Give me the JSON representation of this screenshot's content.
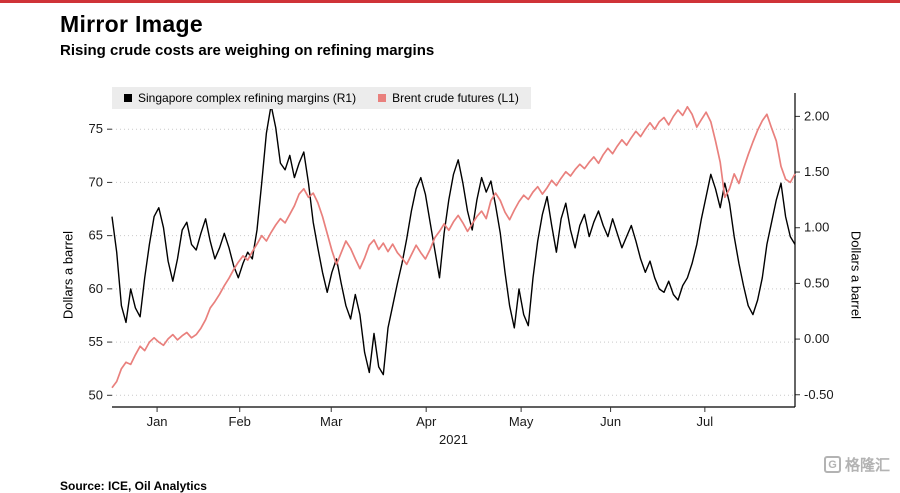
{
  "header": {
    "title": "Mirror Image",
    "subtitle": "Rising crude costs are weighing on refining margins"
  },
  "footer": {
    "source": "Source: ICE, Oil Analytics",
    "watermark": "格隆汇",
    "watermark_icon": "G"
  },
  "colors": {
    "accent_line": "#cf3338",
    "margins_series": "#000000",
    "brent_series": "#e9807d",
    "legend_bg": "#ececec",
    "gridline": "#c9c9c9"
  },
  "chart_data": {
    "type": "line",
    "title": "Mirror Image",
    "subtitle": "Rising crude costs are weighing on refining margins",
    "grid": "dotted-horizontal",
    "legend_position": "top-left",
    "x_axis": {
      "year_label": "2021",
      "month_labels": [
        "Jan",
        "Feb",
        "Mar",
        "Apr",
        "May",
        "Jun",
        "Jul"
      ],
      "month_positions": [
        0.066,
        0.187,
        0.321,
        0.46,
        0.599,
        0.73,
        0.868
      ]
    },
    "left_axis": {
      "label": "Dollars a barrel",
      "ticks": [
        50,
        55,
        60,
        65,
        70,
        75
      ],
      "range": [
        48.9,
        78.4
      ]
    },
    "right_axis": {
      "label": "Dollars a barrel",
      "ticks": [
        -0.5,
        0.0,
        0.5,
        1.0,
        1.5,
        2.0
      ],
      "range": [
        -0.61,
        2.21
      ]
    },
    "series": [
      {
        "name": "Singapore complex refining margins (R1)",
        "axis": "right",
        "color": "#000000",
        "values": [
          1.1,
          0.78,
          0.3,
          0.15,
          0.45,
          0.28,
          0.2,
          0.55,
          0.85,
          1.1,
          1.18,
          1.0,
          0.7,
          0.52,
          0.72,
          0.98,
          1.05,
          0.85,
          0.8,
          0.95,
          1.08,
          0.88,
          0.72,
          0.82,
          0.95,
          0.82,
          0.66,
          0.55,
          0.68,
          0.78,
          0.72,
          0.98,
          1.4,
          1.85,
          2.1,
          1.9,
          1.58,
          1.52,
          1.65,
          1.45,
          1.58,
          1.68,
          1.4,
          1.05,
          0.82,
          0.6,
          0.42,
          0.6,
          0.72,
          0.5,
          0.3,
          0.18,
          0.4,
          0.22,
          -0.12,
          -0.3,
          0.05,
          -0.25,
          -0.32,
          0.1,
          0.3,
          0.5,
          0.68,
          0.9,
          1.15,
          1.35,
          1.45,
          1.3,
          1.05,
          0.8,
          0.55,
          0.95,
          1.25,
          1.48,
          1.61,
          1.4,
          1.15,
          0.98,
          1.25,
          1.45,
          1.32,
          1.42,
          1.2,
          0.95,
          0.6,
          0.3,
          0.1,
          0.45,
          0.22,
          0.12,
          0.55,
          0.88,
          1.12,
          1.28,
          1.02,
          0.78,
          1.08,
          1.22,
          0.98,
          0.82,
          1.02,
          1.12,
          0.92,
          1.05,
          1.15,
          1.02,
          0.92,
          1.08,
          0.95,
          0.82,
          0.92,
          1.02,
          0.88,
          0.72,
          0.6,
          0.7,
          0.55,
          0.45,
          0.42,
          0.52,
          0.4,
          0.35,
          0.48,
          0.55,
          0.68,
          0.85,
          1.08,
          1.28,
          1.48,
          1.35,
          1.18,
          1.4,
          1.22,
          0.92,
          0.68,
          0.48,
          0.3,
          0.22,
          0.35,
          0.55,
          0.85,
          1.05,
          1.25,
          1.4,
          1.1,
          0.92,
          0.85
        ]
      },
      {
        "name": "Brent crude futures (L1)",
        "axis": "left",
        "color": "#e9807d",
        "values": [
          50.7,
          51.3,
          52.5,
          53.1,
          52.9,
          53.8,
          54.6,
          54.2,
          55.0,
          55.4,
          55.0,
          54.7,
          55.3,
          55.7,
          55.2,
          55.6,
          55.9,
          55.4,
          55.7,
          56.3,
          57.1,
          58.2,
          58.8,
          59.5,
          60.3,
          61.0,
          61.8,
          62.5,
          63.1,
          62.7,
          63.5,
          64.2,
          65.0,
          64.5,
          65.3,
          66.0,
          66.6,
          66.2,
          67.0,
          67.8,
          68.9,
          69.4,
          68.6,
          69.0,
          68.1,
          66.8,
          65.2,
          63.6,
          62.3,
          63.4,
          64.5,
          63.8,
          62.8,
          61.9,
          62.9,
          64.1,
          64.6,
          63.7,
          64.3,
          63.5,
          64.2,
          63.4,
          62.9,
          62.3,
          63.2,
          64.1,
          63.4,
          62.8,
          63.7,
          64.8,
          65.4,
          66.1,
          65.5,
          66.3,
          66.9,
          66.2,
          65.4,
          66.1,
          66.8,
          67.3,
          66.6,
          68.3,
          69.0,
          68.3,
          67.2,
          66.5,
          67.4,
          68.2,
          68.8,
          68.4,
          69.1,
          69.6,
          68.9,
          69.5,
          70.2,
          69.7,
          70.4,
          71.0,
          70.6,
          71.2,
          71.7,
          71.3,
          71.9,
          72.4,
          71.8,
          72.6,
          73.2,
          72.7,
          73.4,
          74.0,
          73.5,
          74.2,
          74.8,
          74.3,
          75.0,
          75.6,
          75.0,
          75.7,
          76.1,
          75.4,
          76.2,
          76.8,
          76.3,
          77.1,
          76.4,
          75.2,
          75.9,
          76.6,
          75.7,
          73.9,
          71.9,
          68.6,
          69.4,
          70.8,
          69.9,
          71.3,
          72.6,
          73.8,
          74.9,
          75.8,
          76.4,
          75.1,
          73.9,
          71.5,
          70.3,
          70.0,
          70.8
        ]
      }
    ]
  }
}
